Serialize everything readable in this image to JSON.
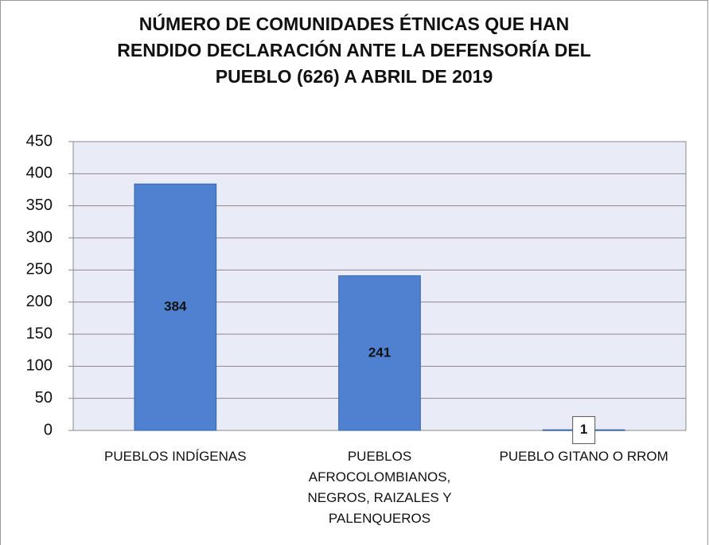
{
  "chart_data": {
    "type": "bar",
    "title": "NÚMERO DE COMUNIDADES ÉTNICAS QUE HAN RENDIDO DECLARACIÓN ANTE LA DEFENSORÍA DEL PUEBLO (626) A ABRIL DE 2019",
    "categories": [
      "PUEBLOS INDÍGENAS",
      "PUEBLOS AFROCOLOMBIANOS, NEGROS, RAIZALES Y PALENQUEROS",
      "PUEBLO GITANO O RROM"
    ],
    "values": [
      384,
      241,
      1
    ],
    "color": "#4f81d0",
    "ylim": [
      0,
      450
    ],
    "yticks": [
      0,
      50,
      100,
      150,
      200,
      250,
      300,
      350,
      400,
      450
    ],
    "grid": true
  }
}
